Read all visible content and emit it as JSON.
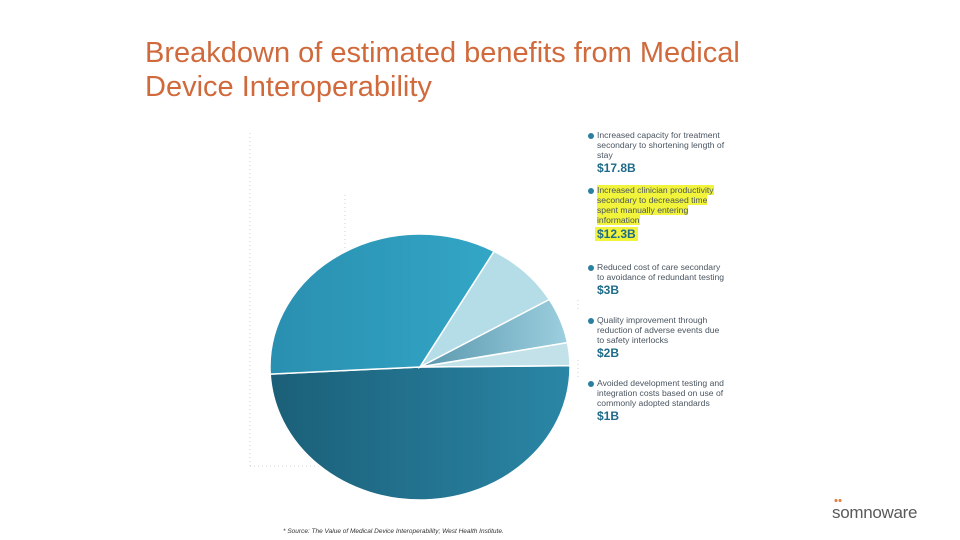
{
  "title": {
    "line1": "Breakdown of estimated benefits from Medical",
    "line2": "Device Interoperability"
  },
  "chart_data": {
    "type": "pie",
    "title": "Breakdown of estimated benefits from Medical Device Interoperability",
    "units": "billion USD",
    "slices": [
      {
        "label": "Increased capacity for treatment secondary to shortening length of stay",
        "value": 17.8,
        "color": "#1f6e86"
      },
      {
        "label": "Increased clinician productivity secondary to decreased time spent manually entering information",
        "value": 12.3,
        "color": "#2e9cbd"
      },
      {
        "label": "Reduced cost of care secondary to avoidance of redundant testing",
        "value": 3,
        "color": "#b5dde8"
      },
      {
        "label": "Quality improvement through reduction of adverse events due to safety interlocks",
        "value": 2,
        "color": "#6fb6cc"
      },
      {
        "label": "Avoided development testing and integration costs based on use of commonly adopted standards",
        "value": 1,
        "color": "#c2e1e9"
      }
    ]
  },
  "legend": [
    {
      "text": "Increased capacity for treatment secondary to shortening length of stay",
      "value": "$17.8B",
      "highlight": false
    },
    {
      "text": "Increased clinician productivity secondary to decreased time spent manually entering information",
      "value": "$12.3B",
      "highlight": true
    },
    {
      "text": "Reduced cost of care secondary to avoidance of redundant testing",
      "value": "$3B",
      "highlight": false
    },
    {
      "text": "Quality improvement through reduction of adverse events due to safety interlocks",
      "value": "$2B",
      "highlight": false
    },
    {
      "text": "Avoided development testing and integration costs based on use of commonly adopted standards",
      "value": "$1B",
      "highlight": false
    }
  ],
  "footnote": "* Source: The Value of Medical Device Interoperability; West Health Institute.",
  "logo": "somnoware"
}
